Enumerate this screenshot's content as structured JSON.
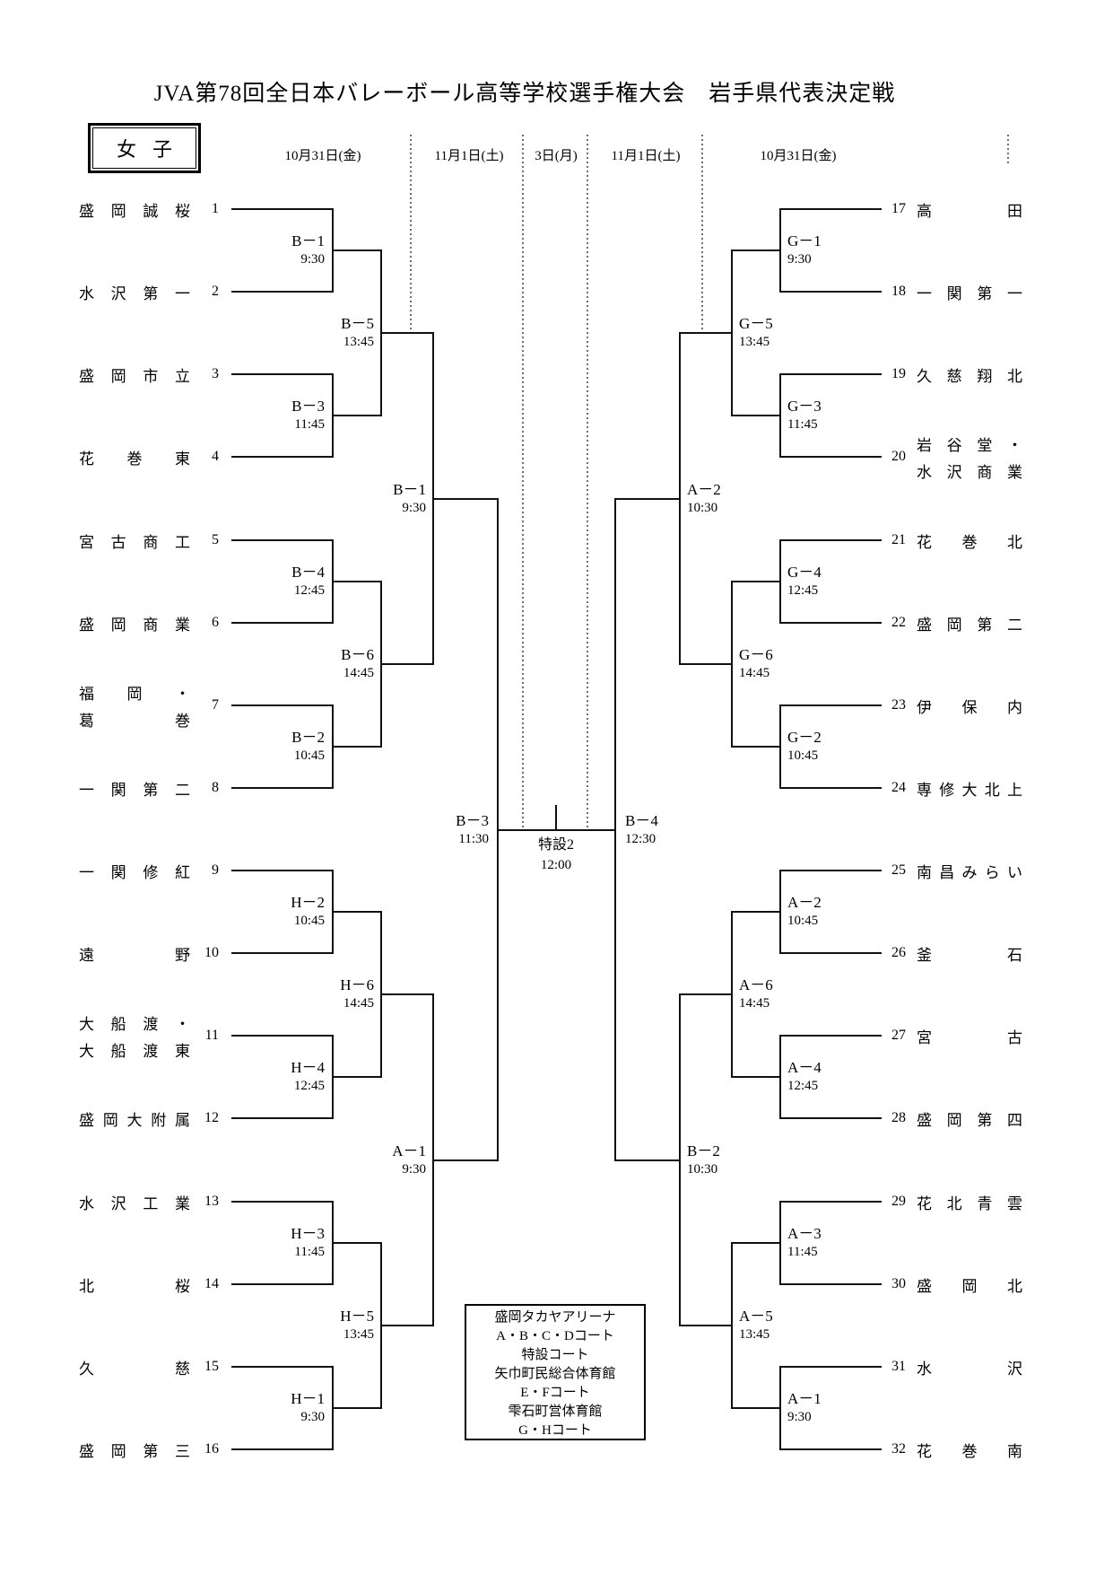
{
  "title": "JVA第78回全日本バレーボール高等学校選手権大会　岩手県代表決定戦",
  "category": "女子",
  "date_columns": [
    "10月31日(金)",
    "11月1日(土)",
    "3日(月)",
    "11月1日(土)",
    "10月31日(金)"
  ],
  "teams_left": [
    {
      "num": "1",
      "lines": [
        "盛岡誠桜"
      ]
    },
    {
      "num": "2",
      "lines": [
        "水沢第一"
      ]
    },
    {
      "num": "3",
      "lines": [
        "盛岡市立"
      ]
    },
    {
      "num": "4",
      "lines": [
        "花巻東"
      ]
    },
    {
      "num": "5",
      "lines": [
        "宮古商工"
      ]
    },
    {
      "num": "6",
      "lines": [
        "盛岡商業"
      ]
    },
    {
      "num": "7",
      "lines": [
        "福岡・",
        "葛巻"
      ]
    },
    {
      "num": "8",
      "lines": [
        "一関第二"
      ]
    },
    {
      "num": "9",
      "lines": [
        "一関修紅"
      ]
    },
    {
      "num": "10",
      "lines": [
        "遠野"
      ]
    },
    {
      "num": "11",
      "lines": [
        "大船渡・",
        "大船渡東"
      ]
    },
    {
      "num": "12",
      "lines": [
        "盛岡大附属"
      ]
    },
    {
      "num": "13",
      "lines": [
        "水沢工業"
      ]
    },
    {
      "num": "14",
      "lines": [
        "北桜"
      ]
    },
    {
      "num": "15",
      "lines": [
        "久慈"
      ]
    },
    {
      "num": "16",
      "lines": [
        "盛岡第三"
      ]
    }
  ],
  "teams_right": [
    {
      "num": "17",
      "lines": [
        "高田"
      ]
    },
    {
      "num": "18",
      "lines": [
        "一関第一"
      ]
    },
    {
      "num": "19",
      "lines": [
        "久慈翔北"
      ]
    },
    {
      "num": "20",
      "lines": [
        "岩谷堂・",
        "水沢商業"
      ]
    },
    {
      "num": "21",
      "lines": [
        "花巻北"
      ]
    },
    {
      "num": "22",
      "lines": [
        "盛岡第二"
      ]
    },
    {
      "num": "23",
      "lines": [
        "伊保内"
      ]
    },
    {
      "num": "24",
      "lines": [
        "専修大北上"
      ]
    },
    {
      "num": "25",
      "lines": [
        "南昌みらい"
      ]
    },
    {
      "num": "26",
      "lines": [
        "釜石"
      ]
    },
    {
      "num": "27",
      "lines": [
        "宮古"
      ]
    },
    {
      "num": "28",
      "lines": [
        "盛岡第四"
      ]
    },
    {
      "num": "29",
      "lines": [
        "花北青雲"
      ]
    },
    {
      "num": "30",
      "lines": [
        "盛岡北"
      ]
    },
    {
      "num": "31",
      "lines": [
        "水沢"
      ]
    },
    {
      "num": "32",
      "lines": [
        "花巻南"
      ]
    }
  ],
  "bracket": {
    "left": {
      "round1": [
        {
          "code": "B－1",
          "time": "9:30"
        },
        {
          "code": "B－3",
          "time": "11:45"
        },
        {
          "code": "B－4",
          "time": "12:45"
        },
        {
          "code": "B－2",
          "time": "10:45"
        },
        {
          "code": "H－2",
          "time": "10:45"
        },
        {
          "code": "H－4",
          "time": "12:45"
        },
        {
          "code": "H－3",
          "time": "11:45"
        },
        {
          "code": "H－1",
          "time": "9:30"
        }
      ],
      "round2": [
        {
          "code": "B－5",
          "time": "13:45"
        },
        {
          "code": "B－6",
          "time": "14:45"
        },
        {
          "code": "H－6",
          "time": "14:45"
        },
        {
          "code": "H－5",
          "time": "13:45"
        }
      ],
      "semifinals": [
        {
          "code": "B－1",
          "time": "9:30"
        },
        {
          "code": "A－1",
          "time": "9:30"
        }
      ],
      "qualifier": {
        "code": "B－3",
        "time": "11:30"
      }
    },
    "right": {
      "round1": [
        {
          "code": "G－1",
          "time": "9:30"
        },
        {
          "code": "G－3",
          "time": "11:45"
        },
        {
          "code": "G－4",
          "time": "12:45"
        },
        {
          "code": "G－2",
          "time": "10:45"
        },
        {
          "code": "A－2",
          "time": "10:45"
        },
        {
          "code": "A－4",
          "time": "12:45"
        },
        {
          "code": "A－3",
          "time": "11:45"
        },
        {
          "code": "A－1",
          "time": "9:30"
        }
      ],
      "round2": [
        {
          "code": "G－5",
          "time": "13:45"
        },
        {
          "code": "G－6",
          "time": "14:45"
        },
        {
          "code": "A－6",
          "time": "14:45"
        },
        {
          "code": "A－5",
          "time": "13:45"
        }
      ],
      "semifinals": [
        {
          "code": "A－2",
          "time": "10:30"
        },
        {
          "code": "B－2",
          "time": "10:30"
        }
      ],
      "qualifier": {
        "code": "B－4",
        "time": "12:30"
      }
    },
    "final": {
      "court": "特設2",
      "time": "12:00"
    }
  },
  "venue": {
    "lines": [
      "盛岡タカヤアリーナ",
      "A・B・C・Dコート",
      "特設コート",
      "矢巾町民総合体育館",
      "E・Fコート",
      "雫石町営体育館",
      "G・Hコート"
    ]
  }
}
